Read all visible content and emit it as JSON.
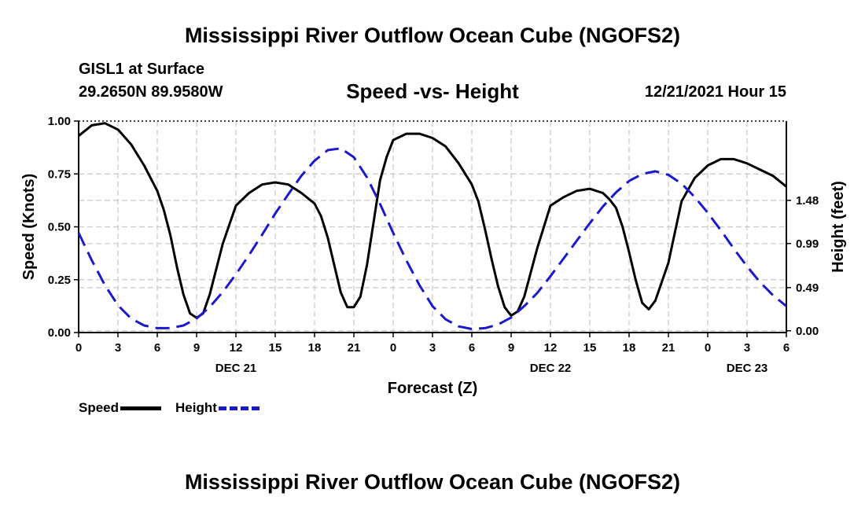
{
  "header": {
    "title": "Mississippi River Outflow Ocean Cube (NGOFS2)",
    "station": "GISL1 at Surface",
    "coords": "29.2650N  89.9580W",
    "subtitle": "Speed -vs- Height",
    "datetime": "12/21/2021 Hour 15",
    "footer_title": "Mississippi River Outflow Ocean Cube (NGOFS2)"
  },
  "legend": {
    "speed_label": "Speed",
    "height_label": "Height",
    "speed_color": "#000000",
    "height_color": "#1a1acc"
  },
  "chart_data": {
    "type": "line",
    "title": "Speed -vs- Height",
    "xlabel": "Forecast (Z)",
    "ylabel_left": "Speed (Knots)",
    "ylabel_right": "Height (feet)",
    "x_unit": "hours since 12/21/2021 00Z",
    "xlim": [
      0,
      54
    ],
    "x_ticks": [
      0,
      3,
      6,
      9,
      12,
      15,
      18,
      21,
      24,
      27,
      30,
      33,
      36,
      39,
      42,
      45,
      48,
      51,
      54
    ],
    "x_tick_labels": [
      "0",
      "3",
      "6",
      "9",
      "12",
      "15",
      "18",
      "21",
      "0",
      "3",
      "6",
      "9",
      "12",
      "15",
      "18",
      "21",
      "0",
      "3",
      "6"
    ],
    "day_labels": [
      {
        "x": 12,
        "text": "DEC 21"
      },
      {
        "x": 36,
        "text": "DEC 22"
      },
      {
        "x": 60,
        "text": "DEC 23"
      }
    ],
    "y_left": {
      "lim": [
        0,
        1
      ],
      "ticks": [
        0,
        0.25,
        0.5,
        0.75,
        1.0
      ],
      "tick_labels": [
        "0.00",
        "0.25",
        "0.50",
        "0.75",
        "1.00"
      ]
    },
    "y_right": {
      "lim": [
        -0.02,
        2.38
      ],
      "ticks": [
        0.0,
        0.49,
        0.99,
        1.48
      ],
      "tick_labels": [
        "0.00",
        "0.49",
        "0.99",
        "1.48"
      ]
    },
    "grid": true,
    "series": [
      {
        "name": "Speed",
        "axis": "left",
        "style": "solid",
        "color": "#000000",
        "x": [
          0,
          1,
          2,
          3,
          4,
          5,
          6,
          6.5,
          7,
          7.5,
          8,
          8.5,
          9,
          9.5,
          10,
          11,
          12,
          13,
          14,
          15,
          16,
          17,
          18,
          18.5,
          19,
          19.5,
          20,
          20.5,
          21,
          21.5,
          22,
          22.5,
          23,
          23.5,
          24,
          25,
          26,
          27,
          28,
          29,
          30,
          30.5,
          31,
          31.5,
          32,
          32.5,
          33,
          33.5,
          34,
          35,
          36,
          37,
          38,
          39,
          40,
          40.5,
          41,
          41.5,
          42,
          42.5,
          43,
          43.5,
          44,
          45,
          46,
          47,
          48,
          49,
          50,
          51,
          52,
          53,
          54
        ],
        "y": [
          0.93,
          0.98,
          0.99,
          0.96,
          0.89,
          0.79,
          0.67,
          0.58,
          0.46,
          0.31,
          0.18,
          0.09,
          0.07,
          0.09,
          0.18,
          0.42,
          0.6,
          0.66,
          0.7,
          0.71,
          0.7,
          0.66,
          0.61,
          0.55,
          0.45,
          0.32,
          0.19,
          0.12,
          0.12,
          0.17,
          0.32,
          0.52,
          0.72,
          0.83,
          0.91,
          0.94,
          0.94,
          0.92,
          0.88,
          0.8,
          0.7,
          0.62,
          0.49,
          0.35,
          0.22,
          0.12,
          0.08,
          0.1,
          0.17,
          0.4,
          0.6,
          0.64,
          0.67,
          0.68,
          0.66,
          0.63,
          0.59,
          0.5,
          0.38,
          0.25,
          0.14,
          0.11,
          0.15,
          0.33,
          0.62,
          0.73,
          0.79,
          0.82,
          0.82,
          0.8,
          0.77,
          0.74,
          0.69
        ]
      },
      {
        "name": "Height",
        "axis": "right",
        "style": "dashed",
        "color": "#1a1acc",
        "x": [
          0,
          1,
          2,
          3,
          4,
          5,
          6,
          7,
          8,
          9,
          10,
          11,
          12,
          13,
          14,
          15,
          16,
          17,
          18,
          19,
          20,
          21,
          22,
          23,
          24,
          25,
          26,
          27,
          28,
          29,
          30,
          31,
          32,
          33,
          34,
          35,
          36,
          37,
          38,
          39,
          40,
          41,
          42,
          43,
          44,
          45,
          46,
          47,
          48,
          49,
          50,
          51,
          52,
          53,
          54
        ],
        "y": [
          1.11,
          0.8,
          0.52,
          0.29,
          0.14,
          0.06,
          0.03,
          0.03,
          0.06,
          0.14,
          0.27,
          0.44,
          0.64,
          0.86,
          1.09,
          1.33,
          1.55,
          1.76,
          1.93,
          2.05,
          2.07,
          1.97,
          1.74,
          1.44,
          1.11,
          0.8,
          0.52,
          0.28,
          0.13,
          0.05,
          0.02,
          0.03,
          0.07,
          0.15,
          0.28,
          0.43,
          0.62,
          0.82,
          1.02,
          1.22,
          1.41,
          1.57,
          1.7,
          1.78,
          1.81,
          1.77,
          1.67,
          1.52,
          1.34,
          1.14,
          0.93,
          0.73,
          0.55,
          0.4,
          0.28
        ]
      }
    ]
  }
}
